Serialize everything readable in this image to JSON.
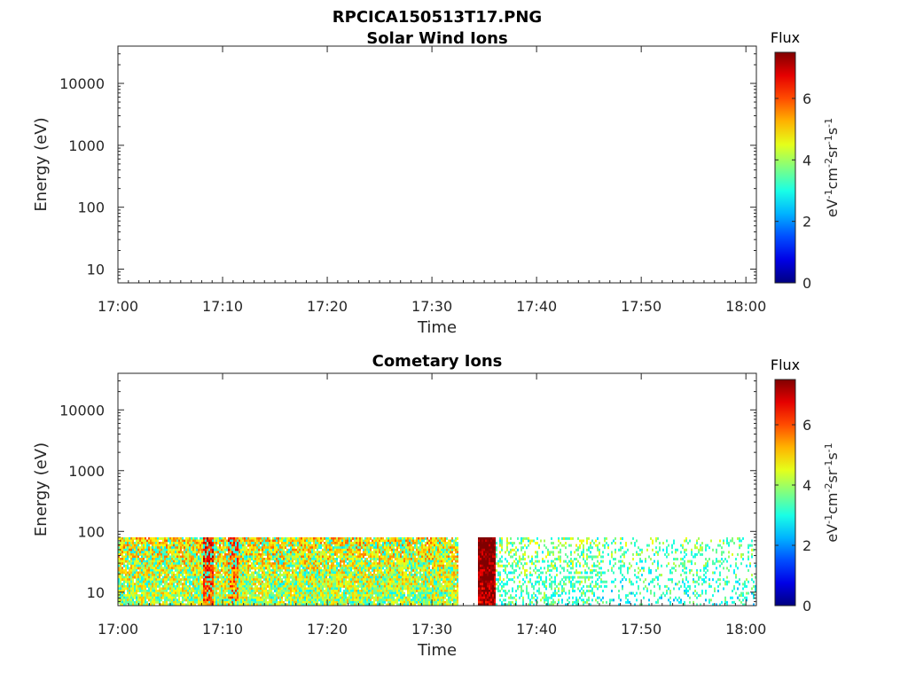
{
  "figure_title": "RPCICA150513T17.PNG",
  "colors": {
    "axis": "#262626",
    "colormap": [
      "#00007f",
      "#0000ff",
      "#007fff",
      "#00ffff",
      "#7fff7f",
      "#ffff00",
      "#ff7f00",
      "#ff0000",
      "#7f0000"
    ]
  },
  "chart_data": [
    {
      "type": "heatmap",
      "title": "Solar Wind Ions",
      "xlabel": "Time",
      "ylabel": "Energy (eV)",
      "x_ticks": [
        "17:00",
        "17:10",
        "17:20",
        "17:30",
        "17:40",
        "17:50",
        "18:00"
      ],
      "x_range_minutes": [
        0,
        61
      ],
      "y_scale": "log",
      "y_ticks": [
        {
          "value": 10,
          "label": "10"
        },
        {
          "value": 100,
          "label": "100"
        },
        {
          "value": 1000,
          "label": "1000"
        },
        {
          "value": 10000,
          "label": "10000"
        }
      ],
      "y_range": [
        6,
        40000
      ],
      "colorbar": {
        "title": "Flux",
        "unit": "eV-1cm-2sr-1s-1",
        "ticks": [
          "0",
          "2",
          "4",
          "6"
        ],
        "range": [
          0,
          7.5
        ]
      },
      "data_present": false,
      "bursts": []
    },
    {
      "type": "heatmap",
      "title": "Cometary Ions",
      "xlabel": "Time",
      "ylabel": "Energy (eV)",
      "x_ticks": [
        "17:00",
        "17:10",
        "17:20",
        "17:30",
        "17:40",
        "17:50",
        "18:00"
      ],
      "x_range_minutes": [
        0,
        61
      ],
      "y_scale": "log",
      "y_ticks": [
        {
          "value": 10,
          "label": "10"
        },
        {
          "value": 100,
          "label": "100"
        },
        {
          "value": 1000,
          "label": "1000"
        },
        {
          "value": 10000,
          "label": "10000"
        }
      ],
      "y_range": [
        6,
        40000
      ],
      "colorbar": {
        "title": "Flux",
        "unit": "eV-1cm-2sr-1s-1",
        "ticks": [
          "0",
          "2",
          "4",
          "6"
        ],
        "range": [
          0,
          7.5
        ]
      },
      "data_present": true,
      "energy_max_eV": 80,
      "bursts": [
        {
          "start_min": 0,
          "end_min": 32.5,
          "flux": 4.3,
          "density": 0.95
        },
        {
          "start_min": 8,
          "end_min": 9,
          "flux": 5.8,
          "density": 1.0
        },
        {
          "start_min": 10.5,
          "end_min": 11.5,
          "flux": 5.3,
          "density": 1.0
        },
        {
          "start_min": 34.3,
          "end_min": 36.0,
          "flux": 7.0,
          "density": 1.0
        },
        {
          "start_min": 36.0,
          "end_min": 46.0,
          "flux": 3.3,
          "density": 0.35
        },
        {
          "start_min": 46.0,
          "end_min": 61.0,
          "flux": 3.0,
          "density": 0.22
        }
      ]
    }
  ]
}
